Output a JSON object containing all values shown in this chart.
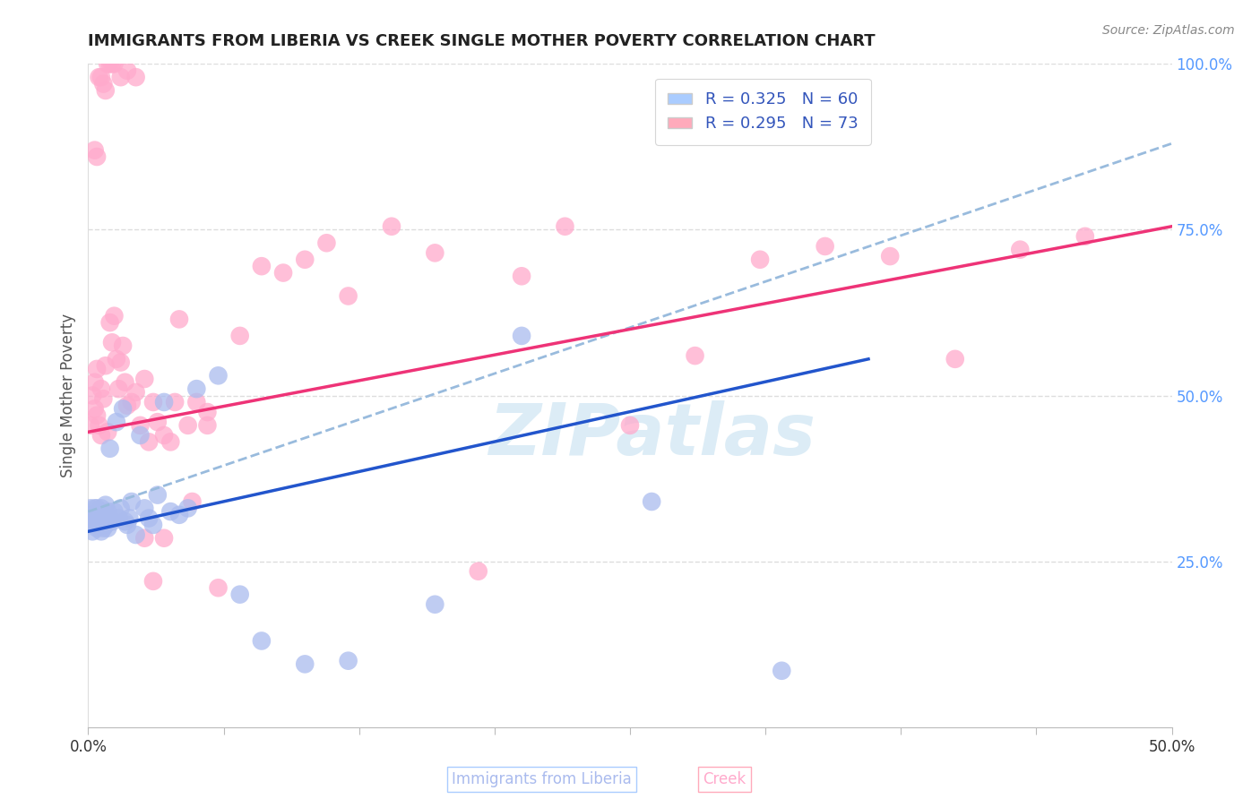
{
  "title": "IMMIGRANTS FROM LIBERIA VS CREEK SINGLE MOTHER POVERTY CORRELATION CHART",
  "source": "Source: ZipAtlas.com",
  "ylabel": "Single Mother Poverty",
  "xlim": [
    0.0,
    0.5
  ],
  "ylim": [
    0.0,
    1.0
  ],
  "xtick_positions": [
    0.0,
    0.0625,
    0.125,
    0.1875,
    0.25,
    0.3125,
    0.375,
    0.4375,
    0.5
  ],
  "xtick_labels_visible": {
    "0.0": "0.0%",
    "0.5": "50.0%"
  },
  "yticks_right": [
    0.25,
    0.5,
    0.75,
    1.0
  ],
  "ytick_labels_right": [
    "25.0%",
    "50.0%",
    "75.0%",
    "100.0%"
  ],
  "right_tick_color": "#5599ff",
  "legend_label_blue": "R = 0.325   N = 60",
  "legend_label_pink": "R = 0.295   N = 73",
  "legend_color_blue": "#aaccff",
  "legend_color_pink": "#ffaabb",
  "watermark": "ZIPatlas",
  "watermark_color": "#c5e0f0",
  "blue_scatter_color": "#aabbee",
  "pink_scatter_color": "#ffaacc",
  "blue_line_color": "#2255cc",
  "pink_line_color": "#ee3377",
  "dashed_line_color": "#99bbdd",
  "grid_color": "#dddddd",
  "blue_line_x0": 0.0,
  "blue_line_y0": 0.295,
  "blue_line_x1": 0.36,
  "blue_line_y1": 0.555,
  "pink_line_x0": 0.0,
  "pink_line_y0": 0.445,
  "pink_line_x1": 0.5,
  "pink_line_y1": 0.755,
  "dash_line_x0": 0.0,
  "dash_line_y0": 0.325,
  "dash_line_x1": 0.5,
  "dash_line_y1": 0.88,
  "blue_x": [
    0.001,
    0.001,
    0.002,
    0.002,
    0.003,
    0.003,
    0.003,
    0.003,
    0.004,
    0.004,
    0.004,
    0.004,
    0.005,
    0.005,
    0.005,
    0.005,
    0.006,
    0.006,
    0.006,
    0.006,
    0.007,
    0.007,
    0.007,
    0.008,
    0.008,
    0.008,
    0.009,
    0.009,
    0.01,
    0.01,
    0.011,
    0.012,
    0.013,
    0.014,
    0.015,
    0.016,
    0.017,
    0.018,
    0.019,
    0.02,
    0.022,
    0.024,
    0.026,
    0.028,
    0.03,
    0.032,
    0.035,
    0.038,
    0.042,
    0.046,
    0.05,
    0.06,
    0.07,
    0.08,
    0.1,
    0.12,
    0.16,
    0.2,
    0.26,
    0.32
  ],
  "blue_y": [
    0.31,
    0.33,
    0.295,
    0.32,
    0.305,
    0.33,
    0.315,
    0.31,
    0.32,
    0.31,
    0.3,
    0.33,
    0.315,
    0.31,
    0.325,
    0.31,
    0.295,
    0.33,
    0.305,
    0.32,
    0.315,
    0.31,
    0.3,
    0.335,
    0.31,
    0.305,
    0.3,
    0.325,
    0.315,
    0.42,
    0.31,
    0.325,
    0.46,
    0.315,
    0.33,
    0.48,
    0.31,
    0.305,
    0.315,
    0.34,
    0.29,
    0.44,
    0.33,
    0.315,
    0.305,
    0.35,
    0.49,
    0.325,
    0.32,
    0.33,
    0.51,
    0.53,
    0.2,
    0.13,
    0.095,
    0.1,
    0.185,
    0.59,
    0.34,
    0.085
  ],
  "pink_x": [
    0.001,
    0.002,
    0.003,
    0.003,
    0.004,
    0.004,
    0.005,
    0.006,
    0.006,
    0.007,
    0.008,
    0.009,
    0.01,
    0.011,
    0.012,
    0.013,
    0.014,
    0.015,
    0.016,
    0.017,
    0.018,
    0.02,
    0.022,
    0.024,
    0.026,
    0.028,
    0.03,
    0.032,
    0.035,
    0.038,
    0.042,
    0.046,
    0.05,
    0.055,
    0.06,
    0.07,
    0.08,
    0.09,
    0.1,
    0.11,
    0.12,
    0.14,
    0.16,
    0.18,
    0.2,
    0.22,
    0.25,
    0.28,
    0.31,
    0.34,
    0.37,
    0.4,
    0.43,
    0.46,
    0.003,
    0.004,
    0.005,
    0.006,
    0.007,
    0.008,
    0.009,
    0.01,
    0.011,
    0.012,
    0.015,
    0.018,
    0.022,
    0.026,
    0.03,
    0.035,
    0.04,
    0.048,
    0.055
  ],
  "pink_y": [
    0.455,
    0.5,
    0.48,
    0.52,
    0.47,
    0.54,
    0.455,
    0.44,
    0.51,
    0.495,
    0.545,
    0.445,
    0.61,
    0.58,
    0.62,
    0.555,
    0.51,
    0.55,
    0.575,
    0.52,
    0.485,
    0.49,
    0.505,
    0.455,
    0.525,
    0.43,
    0.49,
    0.46,
    0.44,
    0.43,
    0.615,
    0.455,
    0.49,
    0.455,
    0.21,
    0.59,
    0.695,
    0.685,
    0.705,
    0.73,
    0.65,
    0.755,
    0.715,
    0.235,
    0.68,
    0.755,
    0.455,
    0.56,
    0.705,
    0.725,
    0.71,
    0.555,
    0.72,
    0.74,
    0.87,
    0.86,
    0.98,
    0.98,
    0.97,
    0.96,
    1.0,
    1.0,
    1.0,
    1.0,
    0.98,
    0.99,
    0.98,
    0.285,
    0.22,
    0.285,
    0.49,
    0.34,
    0.475
  ]
}
